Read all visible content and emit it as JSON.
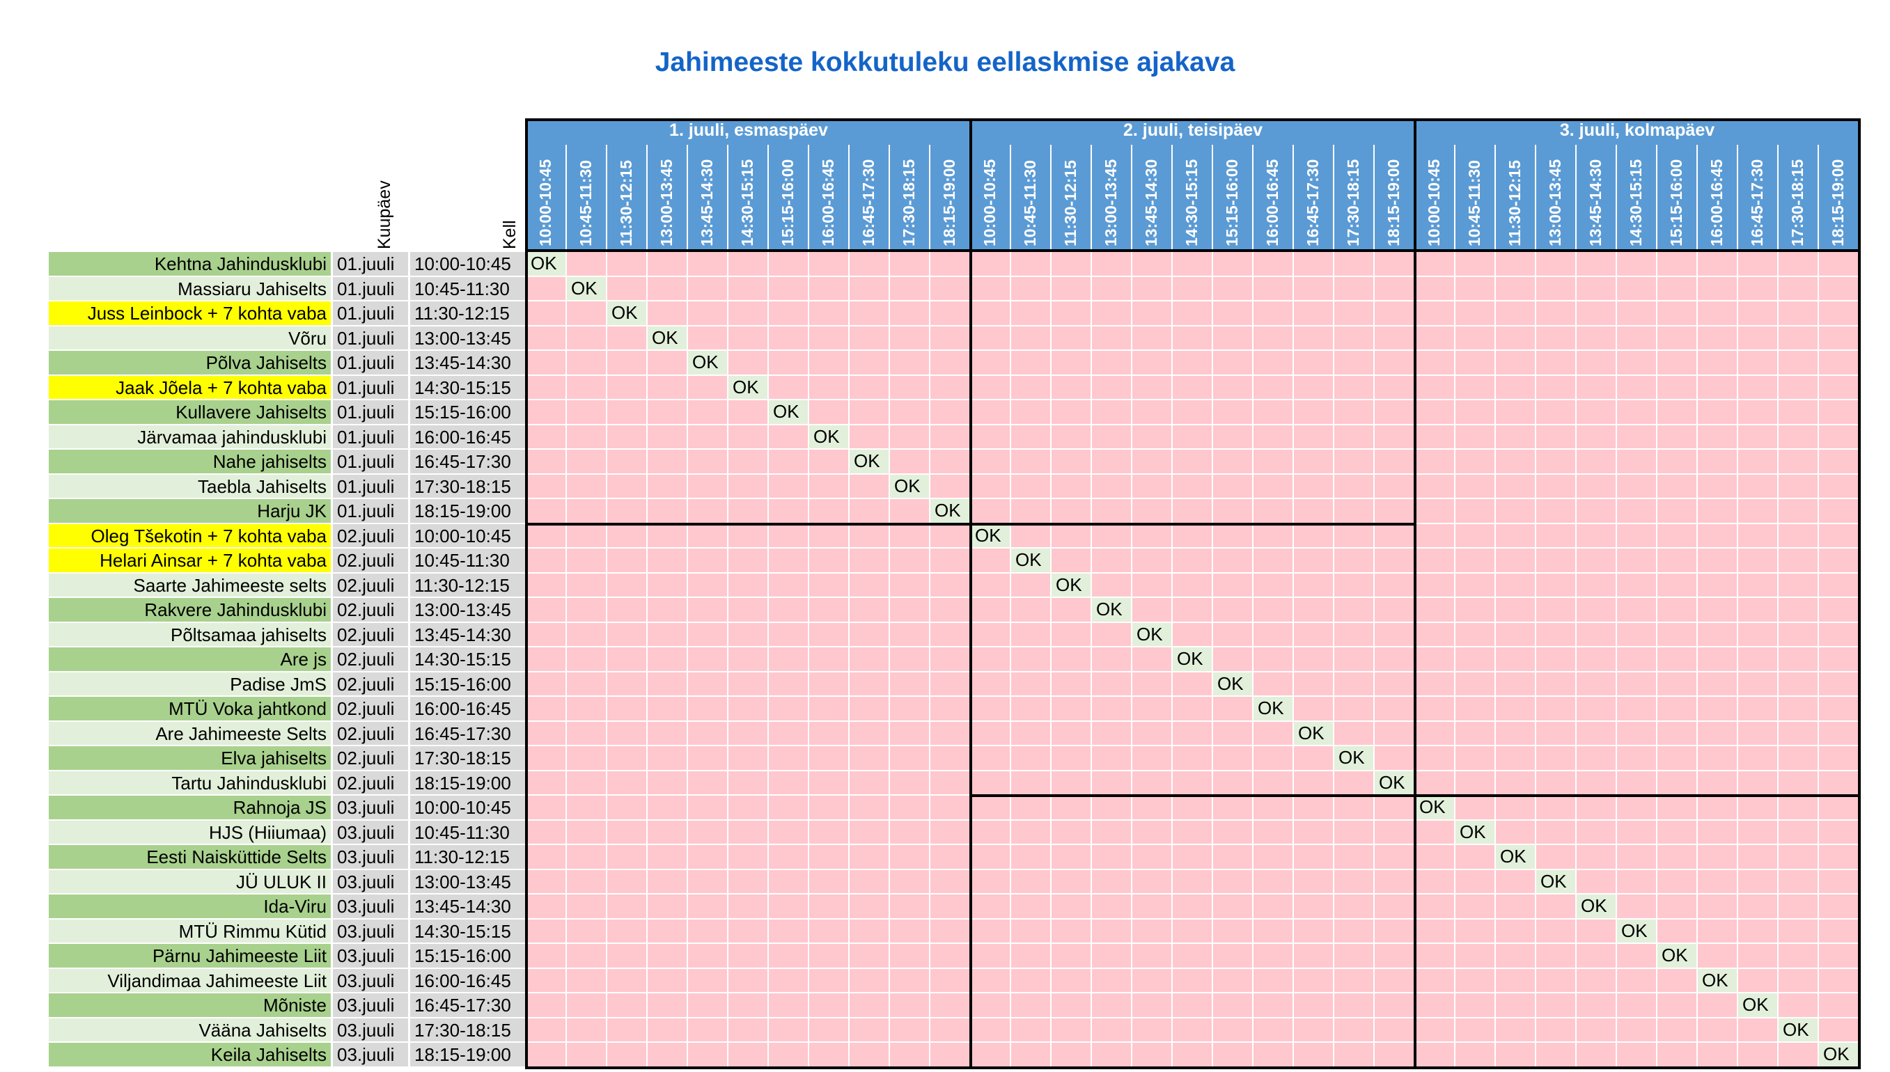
{
  "title": "Jahimeeste kokkutuleku eellaskmise ajakava",
  "headers": {
    "date": "Kuupäev",
    "time": "Kell"
  },
  "days": [
    {
      "label": "1. juuli, esmaspäev"
    },
    {
      "label": "2. juuli, teisipäev"
    },
    {
      "label": "3. juuli, kolmapäev"
    }
  ],
  "slots": [
    "10:00-10:45",
    "10:45-11:30",
    "11:30-12:15",
    "13:00-13:45",
    "13:45-14:30",
    "14:30-15:15",
    "15:15-16:00",
    "16:00-16:45",
    "16:45-17:30",
    "17:30-18:15",
    "18:15-19:00"
  ],
  "status_label": "OK",
  "colors": {
    "title": "#1464c8",
    "header_bg": "#5b9bd5",
    "free_cell": "#ffc7ce",
    "ok_cell": "#e2efda",
    "name_dark": "#a9d18e",
    "name_light": "#e2efda",
    "name_highlight": "#ffff00",
    "date_bg": "#d9d9d9"
  },
  "rows": [
    {
      "name": "Kehtna Jahindusklubi",
      "date": "01.juuli",
      "time": "10:00-10:45",
      "style": "dark"
    },
    {
      "name": "Massiaru Jahiselts",
      "date": "01.juuli",
      "time": "10:45-11:30",
      "style": "light"
    },
    {
      "name": "Juss Leinbock + 7 kohta vaba",
      "date": "01.juuli",
      "time": "11:30-12:15",
      "style": "highlight"
    },
    {
      "name": "Võru",
      "date": "01.juuli",
      "time": "13:00-13:45",
      "style": "light"
    },
    {
      "name": "Põlva Jahiselts",
      "date": "01.juuli",
      "time": "13:45-14:30",
      "style": "dark"
    },
    {
      "name": "Jaak Jõela + 7 kohta vaba",
      "date": "01.juuli",
      "time": "14:30-15:15",
      "style": "highlight"
    },
    {
      "name": "Kullavere Jahiselts",
      "date": "01.juuli",
      "time": "15:15-16:00",
      "style": "dark"
    },
    {
      "name": "Järvamaa jahindusklubi",
      "date": "01.juuli",
      "time": "16:00-16:45",
      "style": "light"
    },
    {
      "name": "Nahe jahiselts",
      "date": "01.juuli",
      "time": "16:45-17:30",
      "style": "dark"
    },
    {
      "name": "Taebla Jahiselts",
      "date": "01.juuli",
      "time": "17:30-18:15",
      "style": "light"
    },
    {
      "name": "Harju JK",
      "date": "01.juuli",
      "time": "18:15-19:00",
      "style": "dark"
    },
    {
      "name": "Oleg Tšekotin + 7 kohta vaba",
      "date": "02.juuli",
      "time": "10:00-10:45",
      "style": "highlight"
    },
    {
      "name": "Helari Ainsar + 7 kohta vaba",
      "date": "02.juuli",
      "time": "10:45-11:30",
      "style": "highlight"
    },
    {
      "name": "Saarte Jahimeeste selts",
      "date": "02.juuli",
      "time": "11:30-12:15",
      "style": "light"
    },
    {
      "name": "Rakvere Jahindusklubi",
      "date": "02.juuli",
      "time": "13:00-13:45",
      "style": "dark"
    },
    {
      "name": "Põltsamaa jahiselts",
      "date": "02.juuli",
      "time": "13:45-14:30",
      "style": "light"
    },
    {
      "name": "Are js",
      "date": "02.juuli",
      "time": "14:30-15:15",
      "style": "dark"
    },
    {
      "name": "Padise JmS",
      "date": "02.juuli",
      "time": "15:15-16:00",
      "style": "light"
    },
    {
      "name": "MTÜ Voka jahtkond",
      "date": "02.juuli",
      "time": "16:00-16:45",
      "style": "dark"
    },
    {
      "name": "Are Jahimeeste Selts",
      "date": "02.juuli",
      "time": "16:45-17:30",
      "style": "light"
    },
    {
      "name": "Elva jahiselts",
      "date": "02.juuli",
      "time": "17:30-18:15",
      "style": "dark"
    },
    {
      "name": "Tartu Jahindusklubi",
      "date": "02.juuli",
      "time": "18:15-19:00",
      "style": "light"
    },
    {
      "name": "Rahnoja JS",
      "date": "03.juuli",
      "time": "10:00-10:45",
      "style": "dark"
    },
    {
      "name": "HJS (Hiiumaa)",
      "date": "03.juuli",
      "time": "10:45-11:30",
      "style": "light"
    },
    {
      "name": "Eesti Naisküttide Selts",
      "date": "03.juuli",
      "time": "11:30-12:15",
      "style": "dark"
    },
    {
      "name": "JÜ ULUK II",
      "date": "03.juuli",
      "time": "13:00-13:45",
      "style": "light"
    },
    {
      "name": "Ida-Viru",
      "date": "03.juuli",
      "time": "13:45-14:30",
      "style": "dark"
    },
    {
      "name": "MTÜ Rimmu Kütid",
      "date": "03.juuli",
      "time": "14:30-15:15",
      "style": "light"
    },
    {
      "name": "Pärnu Jahimeeste Liit",
      "date": "03.juuli",
      "time": "15:15-16:00",
      "style": "dark"
    },
    {
      "name": "Viljandimaa Jahimeeste Liit",
      "date": "03.juuli",
      "time": "16:00-16:45",
      "style": "light"
    },
    {
      "name": "Mõniste",
      "date": "03.juuli",
      "time": "16:45-17:30",
      "style": "dark"
    },
    {
      "name": "Vääna Jahiselts",
      "date": "03.juuli",
      "time": "17:30-18:15",
      "style": "light"
    },
    {
      "name": "Keila Jahiselts",
      "date": "03.juuli",
      "time": "18:15-19:00",
      "style": "dark"
    }
  ]
}
